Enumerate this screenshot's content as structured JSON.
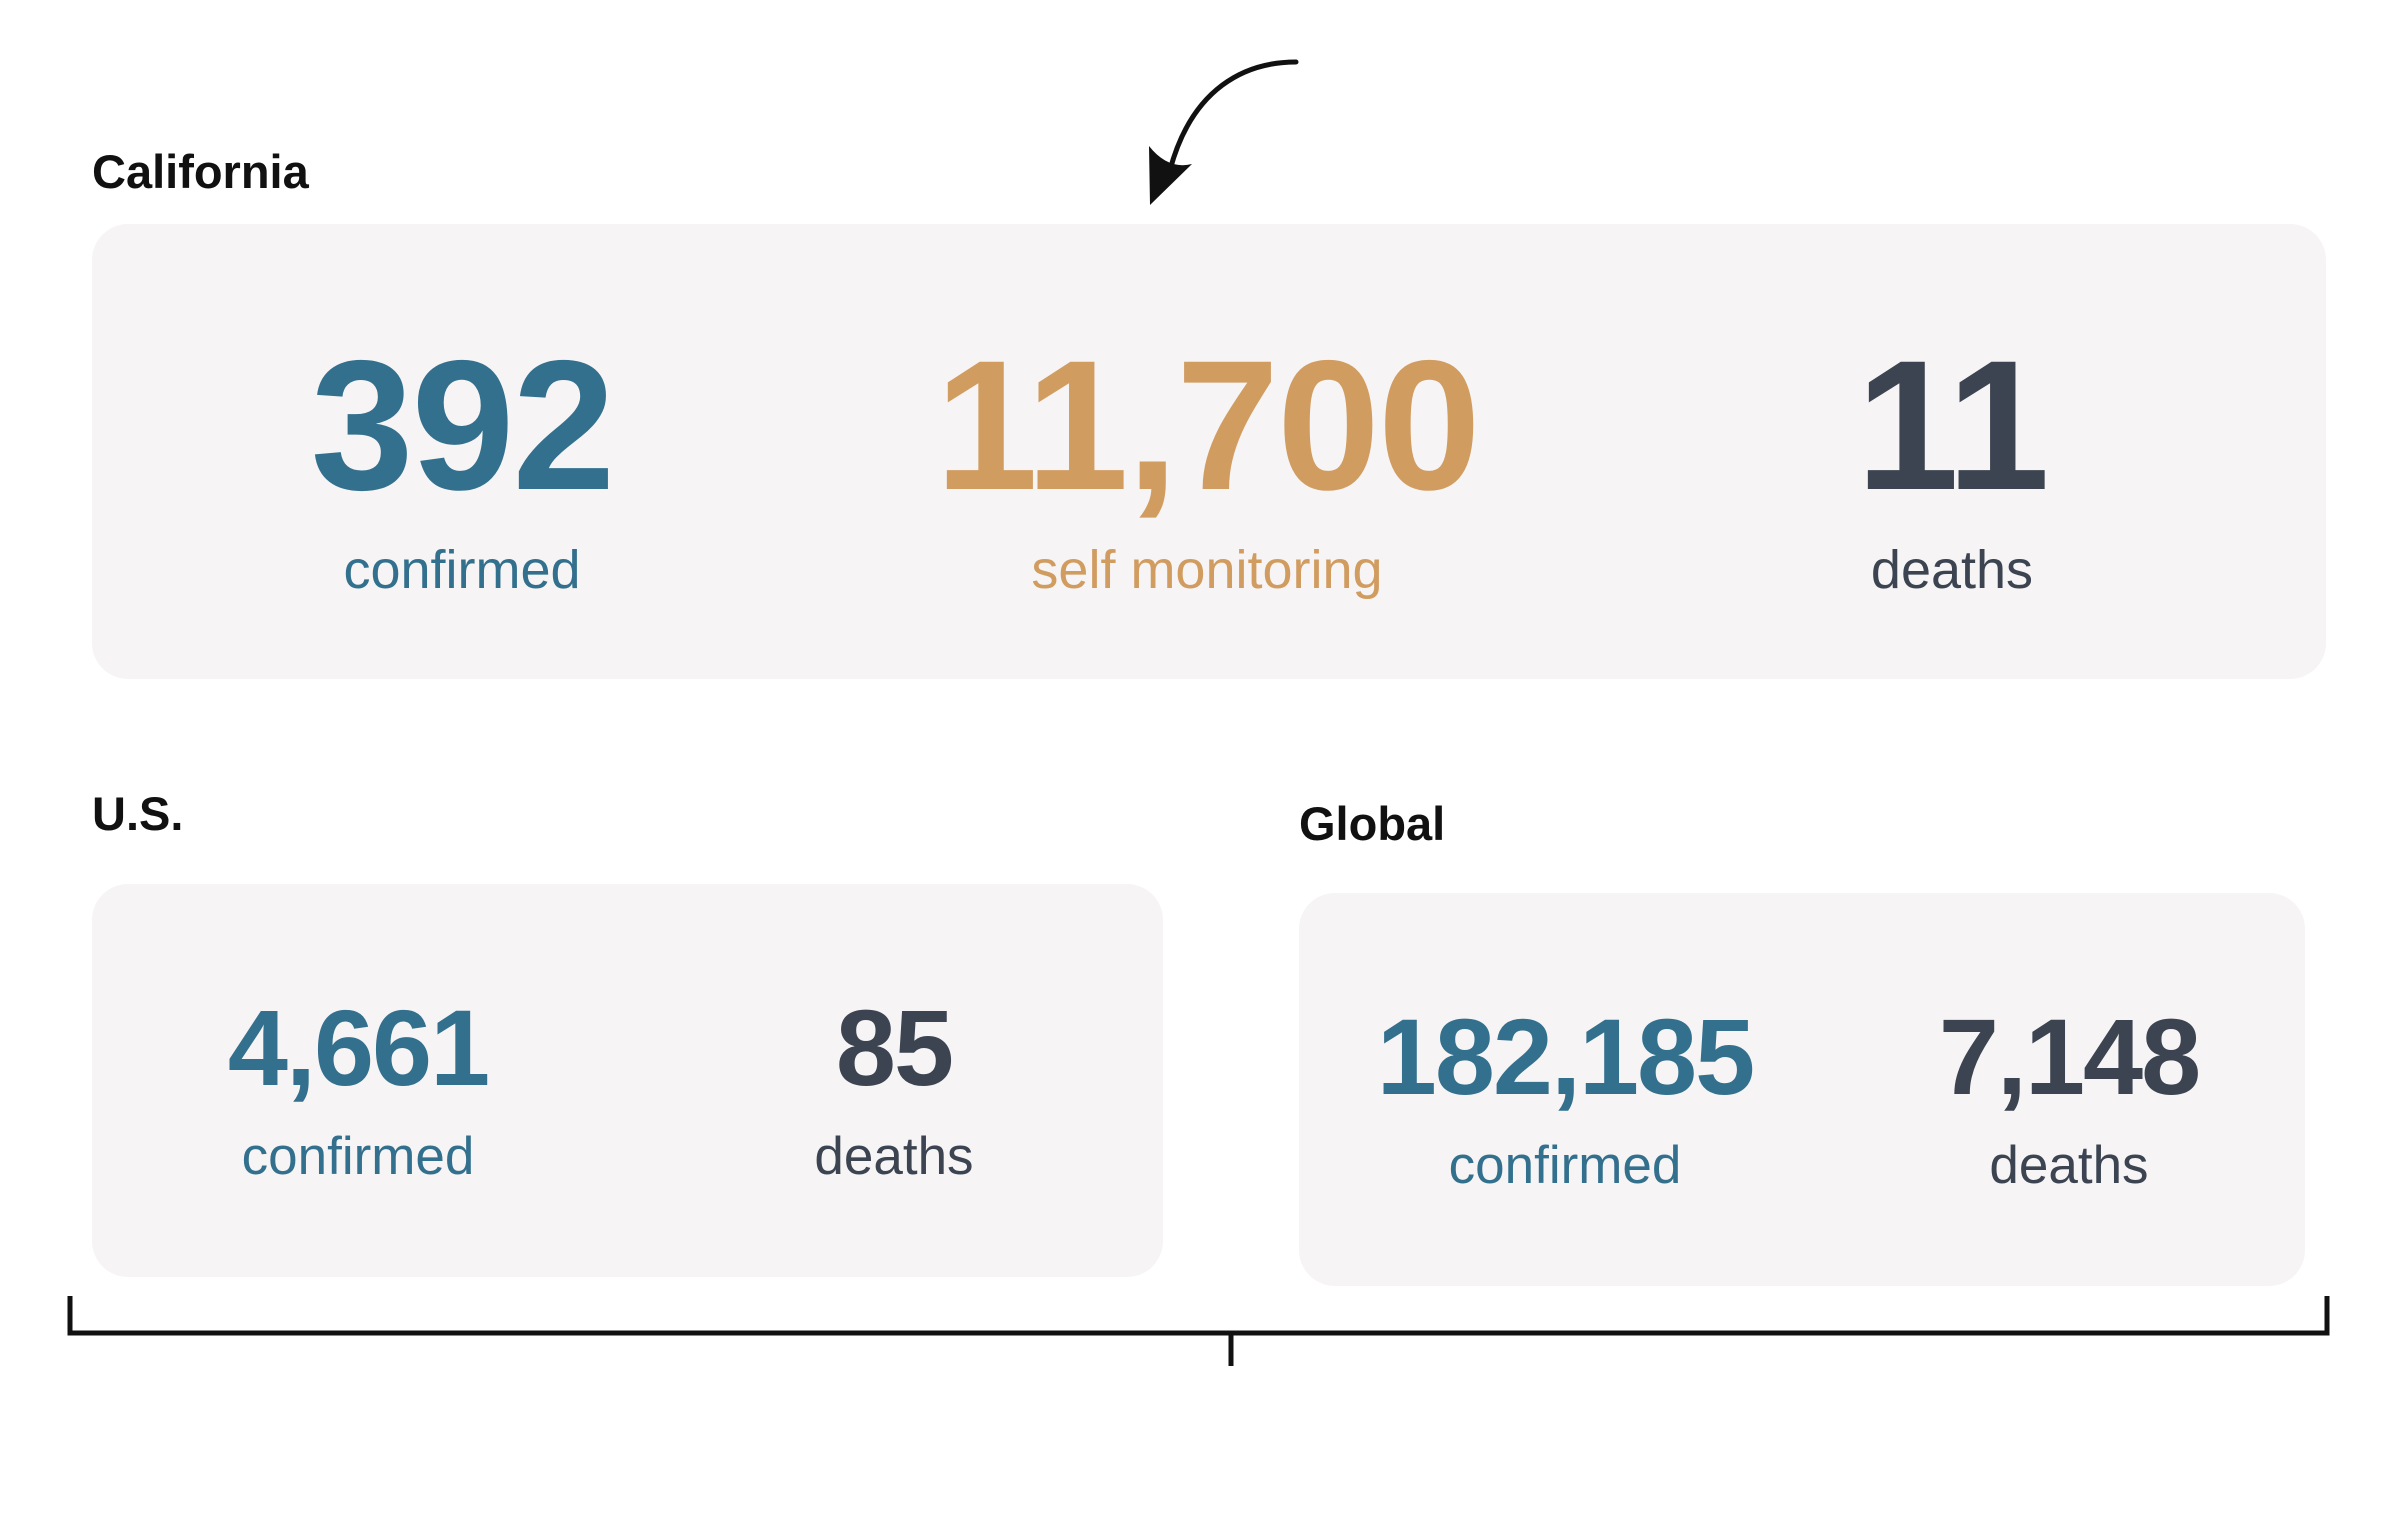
{
  "california": {
    "title": "California",
    "confirmed": {
      "value": "392",
      "label": "confirmed"
    },
    "self_monitoring": {
      "value": "11,700",
      "label": "self monitoring"
    },
    "deaths": {
      "value": "11",
      "label": "deaths"
    }
  },
  "us": {
    "title": "U.S.",
    "confirmed": {
      "value": "4,661",
      "label": "confirmed"
    },
    "deaths": {
      "value": "85",
      "label": "deaths"
    }
  },
  "global": {
    "title": "Global",
    "confirmed": {
      "value": "182,185",
      "label": "confirmed"
    },
    "deaths": {
      "value": "7,148",
      "label": "deaths"
    }
  },
  "colors": {
    "confirmed": "#33708e",
    "self_monitoring": "#d19c60",
    "deaths": "#3b4450",
    "card_background": "#f6f4f4"
  },
  "annotations": [
    "curved-arrow-icon",
    "bracket-icon"
  ]
}
